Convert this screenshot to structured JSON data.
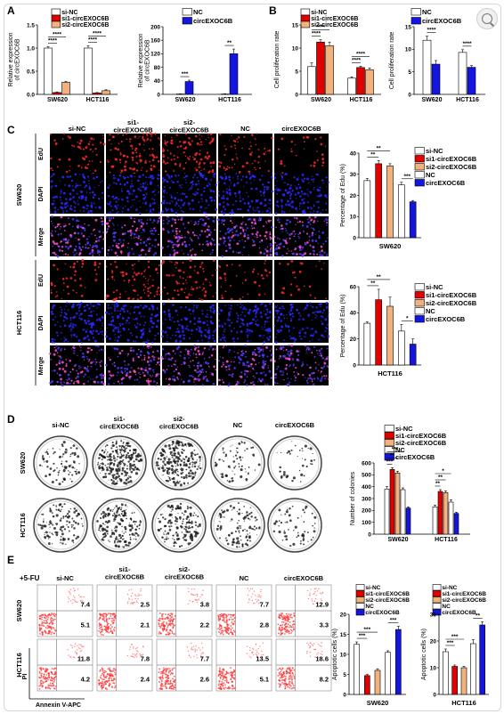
{
  "colors": {
    "si_nc": "#ffffff",
    "si1": "#e00000",
    "si2": "#f2b27e",
    "nc": "#ffffff",
    "circ": "#1515e0",
    "edu_red": "#ff2a2a",
    "dapi_blue": "#2a2aff"
  },
  "zoom_icon": "zoom-in-icon",
  "panels": {
    "A": {
      "letter": "A"
    },
    "B": {
      "letter": "B"
    },
    "C": {
      "letter": "C"
    },
    "D": {
      "letter": "D"
    },
    "E": {
      "letter": "E"
    }
  },
  "legend": {
    "si": [
      "si-NC",
      "si1-circEXOC6B",
      "si2-circEXOC6B"
    ],
    "oe": [
      "NC",
      "circEXOC6B"
    ],
    "all": [
      "si-NC",
      "si1-circEXOC6B",
      "si2-circEXOC6B",
      "NC",
      "circEXOC6B"
    ]
  },
  "groups": [
    "SW620",
    "HCT116"
  ],
  "column_headers": {
    "c": [
      "si-NC",
      "si1-\ncircEXOC6B",
      "si2-\ncircEXOC6B",
      "NC",
      "circEXOC6B"
    ],
    "d": [
      "si-NC",
      "si1-\ncircEXOC6B",
      "si2-\ncircEXOC6B",
      "NC",
      "circEXOC6B"
    ],
    "e": [
      "si-NC",
      "si1-\ncircEXOC6B",
      "si2-\ncircEXOC6B",
      "NC",
      "circEXOC6B"
    ]
  },
  "c_row_labels": [
    "EdU",
    "DAPI",
    "Merge"
  ],
  "e_treatment": "+5-FU",
  "e_axis": {
    "x": "Annexin V-APC",
    "y": "PI"
  },
  "flow_values": {
    "SW620": [
      [
        "7.4",
        "5.1"
      ],
      [
        "2.5",
        "2.1"
      ],
      [
        "3.8",
        "2.2"
      ],
      [
        "7.7",
        "2.8"
      ],
      [
        "12.9",
        "3.3"
      ]
    ],
    "HCT116": [
      [
        "11.8",
        "4.2"
      ],
      [
        "7.8",
        "2.4"
      ],
      [
        "7.7",
        "2.6"
      ],
      [
        "13.5",
        "5.1"
      ],
      [
        "18.6",
        "8.2"
      ]
    ]
  },
  "chart_data": [
    {
      "id": "A1",
      "type": "bar",
      "ylabel": "Relative expression\nof circEXOC6B",
      "ylim": [
        0,
        1.5
      ],
      "yticks": [
        "0.0",
        "0.5",
        "1.0",
        "1.5"
      ],
      "categories": [
        "SW620",
        "HCT116"
      ],
      "series": [
        {
          "name": "si-NC",
          "values": [
            1.0,
            1.0
          ]
        },
        {
          "name": "si1-circEXOC6B",
          "values": [
            0.04,
            0.03
          ]
        },
        {
          "name": "si2-circEXOC6B",
          "values": [
            0.26,
            0.08
          ]
        }
      ],
      "errors": [
        [
          0.03,
          0.05
        ],
        [
          0.01,
          0.01
        ],
        [
          0.02,
          0.02
        ]
      ],
      "sig": [
        "****",
        "****",
        "****",
        "****"
      ]
    },
    {
      "id": "A2",
      "type": "bar",
      "ylabel": "Relative expression\nof circEXOC6B",
      "ylim": [
        0,
        200
      ],
      "yticks": [
        "0",
        "40",
        "80",
        "120",
        "160",
        "200"
      ],
      "categories": [
        "SW620",
        "HCT116"
      ],
      "series": [
        {
          "name": "NC",
          "values": [
            1,
            1
          ]
        },
        {
          "name": "circEXOC6B",
          "values": [
            38,
            120
          ]
        }
      ],
      "errors": [
        [
          0.5,
          0.5
        ],
        [
          4,
          14
        ]
      ],
      "sig": [
        "***",
        "**"
      ]
    },
    {
      "id": "B1",
      "type": "bar",
      "ylabel": "Cell proliferation rate",
      "ylim": [
        0,
        15
      ],
      "yticks": [
        "0",
        "5",
        "10",
        "15"
      ],
      "categories": [
        "SW620",
        "HCT116"
      ],
      "series": [
        {
          "name": "si-NC",
          "values": [
            6.0,
            3.5
          ]
        },
        {
          "name": "si1-circEXOC6B",
          "values": [
            11.3,
            5.8
          ]
        },
        {
          "name": "si2-circEXOC6B",
          "values": [
            10.5,
            5.3
          ]
        }
      ],
      "errors": [
        [
          0.8,
          0.3
        ],
        [
          0.5,
          0.3
        ],
        [
          0.8,
          0.4
        ]
      ],
      "sig": [
        "****",
        "****",
        "****",
        "****"
      ]
    },
    {
      "id": "B2",
      "type": "bar",
      "ylabel": "Cell proliferation rate",
      "ylim": [
        0,
        15
      ],
      "yticks": [
        "0",
        "5",
        "10",
        "15"
      ],
      "categories": [
        "SW620",
        "HCT116"
      ],
      "series": [
        {
          "name": "NC",
          "values": [
            12.0,
            9.3
          ]
        },
        {
          "name": "circEXOC6B",
          "values": [
            6.7,
            6.0
          ]
        }
      ],
      "errors": [
        [
          0.9,
          0.6
        ],
        [
          0.8,
          0.4
        ]
      ],
      "sig": [
        "****",
        "****"
      ]
    },
    {
      "id": "C1",
      "type": "bar",
      "ylabel": "Percentage of Edu (%)",
      "xlabel": "SW620",
      "ylim": [
        0,
        40
      ],
      "yticks": [
        "0",
        "10",
        "20",
        "30",
        "40"
      ],
      "categories": [
        "si-NC",
        "si1-circEXOC6B",
        "si2-circEXOC6B",
        "NC",
        "circEXOC6B"
      ],
      "values": [
        27,
        35,
        34,
        25,
        17
      ],
      "errors": [
        1,
        1.5,
        1,
        1.2,
        0.6
      ],
      "sig": [
        "**",
        "**",
        "***"
      ]
    },
    {
      "id": "C2",
      "type": "bar",
      "ylabel": "Percentage of Edu (%)",
      "xlabel": "HCT116",
      "ylim": [
        0,
        60
      ],
      "yticks": [
        "0",
        "20",
        "40",
        "60"
      ],
      "categories": [
        "si-NC",
        "si1-circEXOC6B",
        "si2-circEXOC6B",
        "NC",
        "circEXOC6B"
      ],
      "values": [
        32,
        50,
        45,
        26,
        16
      ],
      "errors": [
        1,
        8,
        7,
        5,
        4
      ],
      "sig": [
        "**",
        "**",
        "*"
      ]
    },
    {
      "id": "D1",
      "type": "bar",
      "ylabel": "Number of colonies",
      "ylim": [
        0,
        600
      ],
      "yticks": [
        "0",
        "100",
        "200",
        "300",
        "400",
        "500",
        "600"
      ],
      "categories": [
        "SW620",
        "HCT116"
      ],
      "series": [
        {
          "name": "si-NC",
          "values": [
            380,
            230
          ]
        },
        {
          "name": "si1-circEXOC6B",
          "values": [
            545,
            360
          ]
        },
        {
          "name": "si2-circEXOC6B",
          "values": [
            515,
            350
          ]
        },
        {
          "name": "NC",
          "values": [
            375,
            270
          ]
        },
        {
          "name": "circEXOC6B",
          "values": [
            220,
            175
          ]
        }
      ],
      "errors": [
        [
          20,
          15
        ],
        [
          15,
          15
        ],
        [
          15,
          15
        ],
        [
          15,
          20
        ],
        [
          10,
          10
        ]
      ],
      "sig": [
        "***",
        "**",
        "***",
        "**",
        "**",
        "*"
      ]
    },
    {
      "id": "E1",
      "type": "bar",
      "ylabel": "Apoptotic cells (%)",
      "xlabel": "SW620",
      "ylim": [
        0,
        20
      ],
      "yticks": [
        "0",
        "5",
        "10",
        "15",
        "20"
      ],
      "categories": [
        "si-NC",
        "si1-circEXOC6B",
        "si2-circEXOC6B",
        "NC",
        "circEXOC6B"
      ],
      "values": [
        12.5,
        4.7,
        6.0,
        10.5,
        16.2
      ],
      "errors": [
        0.6,
        0.3,
        0.4,
        0.4,
        0.8
      ],
      "sig": [
        "***",
        "***",
        "***"
      ]
    },
    {
      "id": "E2",
      "type": "bar",
      "ylabel": "Apoptotic cells (%)",
      "xlabel": "HCT116",
      "ylim": [
        0,
        30
      ],
      "yticks": [
        "0",
        "10",
        "20",
        "30"
      ],
      "categories": [
        "si-NC",
        "si1-circEXOC6B",
        "si2-circEXOC6B",
        "NC",
        "circEXOC6B"
      ],
      "values": [
        16,
        10.5,
        10,
        19,
        26
      ],
      "errors": [
        1,
        0.5,
        0.5,
        1.5,
        1.2
      ],
      "sig": [
        "***",
        "***",
        "**"
      ]
    }
  ]
}
